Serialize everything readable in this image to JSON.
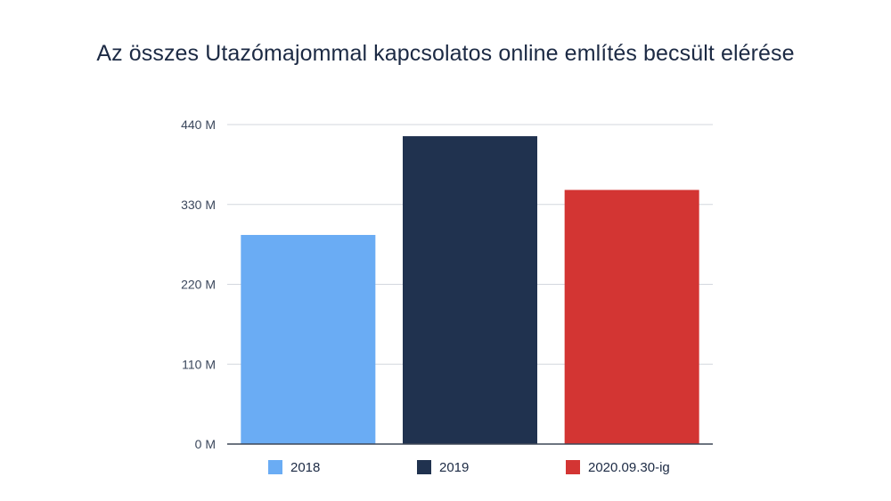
{
  "chart_data": {
    "type": "bar",
    "title": "Az összes Utazómajommal kapcsolatos online említés becsült elérése",
    "xlabel": "",
    "ylabel": "",
    "ylim": [
      0,
      440
    ],
    "yticks": [
      0,
      110,
      220,
      330,
      440
    ],
    "ytick_labels": [
      "0 M",
      "110 M",
      "220 M",
      "330 M",
      "440 M"
    ],
    "grid": true,
    "legend_position": "bottom",
    "series": [
      {
        "name": "2018",
        "values": [
          288
        ],
        "color": "#6aacf4"
      },
      {
        "name": "2019",
        "values": [
          424
        ],
        "color": "#20324f"
      },
      {
        "name": "2020.09.30-ig",
        "values": [
          350
        ],
        "color": "#d33533"
      }
    ]
  }
}
